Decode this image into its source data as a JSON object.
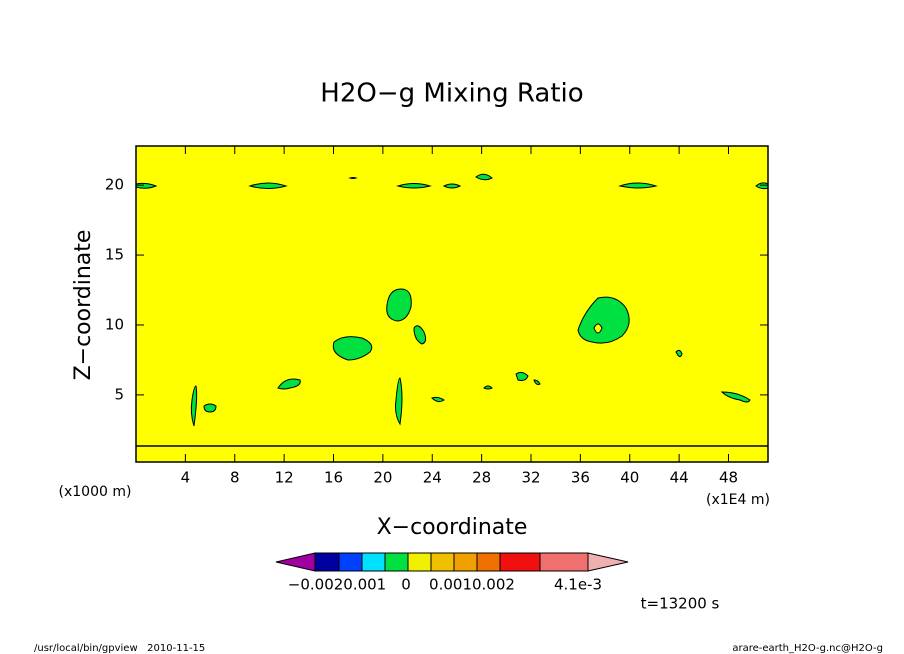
{
  "chart_data": {
    "type": "contour",
    "title": "H2O−g Mixing Ratio",
    "x_label": "X−coordinate",
    "y_label": "Z−coordinate",
    "x_unit": "(x1000 m)",
    "x_scale": "(x1E4 m)",
    "xlim": [
      0,
      51.2
    ],
    "xticks": [
      4,
      8,
      12,
      16,
      20,
      24,
      28,
      32,
      36,
      40,
      44,
      48
    ],
    "ylim": [
      0.2,
      22.8
    ],
    "yticks": [
      5,
      10,
      15,
      20
    ],
    "field_color": "#ffff00",
    "colorbar": {
      "colors": [
        "#a000a0",
        "#0000a0",
        "#0040ff",
        "#00e0ff",
        "#00e040",
        "#f0f000",
        "#f0c000",
        "#f0a000",
        "#f07000",
        "#f01010",
        "#f07070",
        "#f0b0b0"
      ],
      "labels": [
        "−0.0020.001",
        "0",
        "0.0010.002",
        "4.1e-3"
      ]
    },
    "annotation": "t=13200 s",
    "footer_left": "/usr/local/bin/gpview   2010-11-15",
    "footer_right": "arare-earth_H2O-g.nc@H2O-g"
  }
}
